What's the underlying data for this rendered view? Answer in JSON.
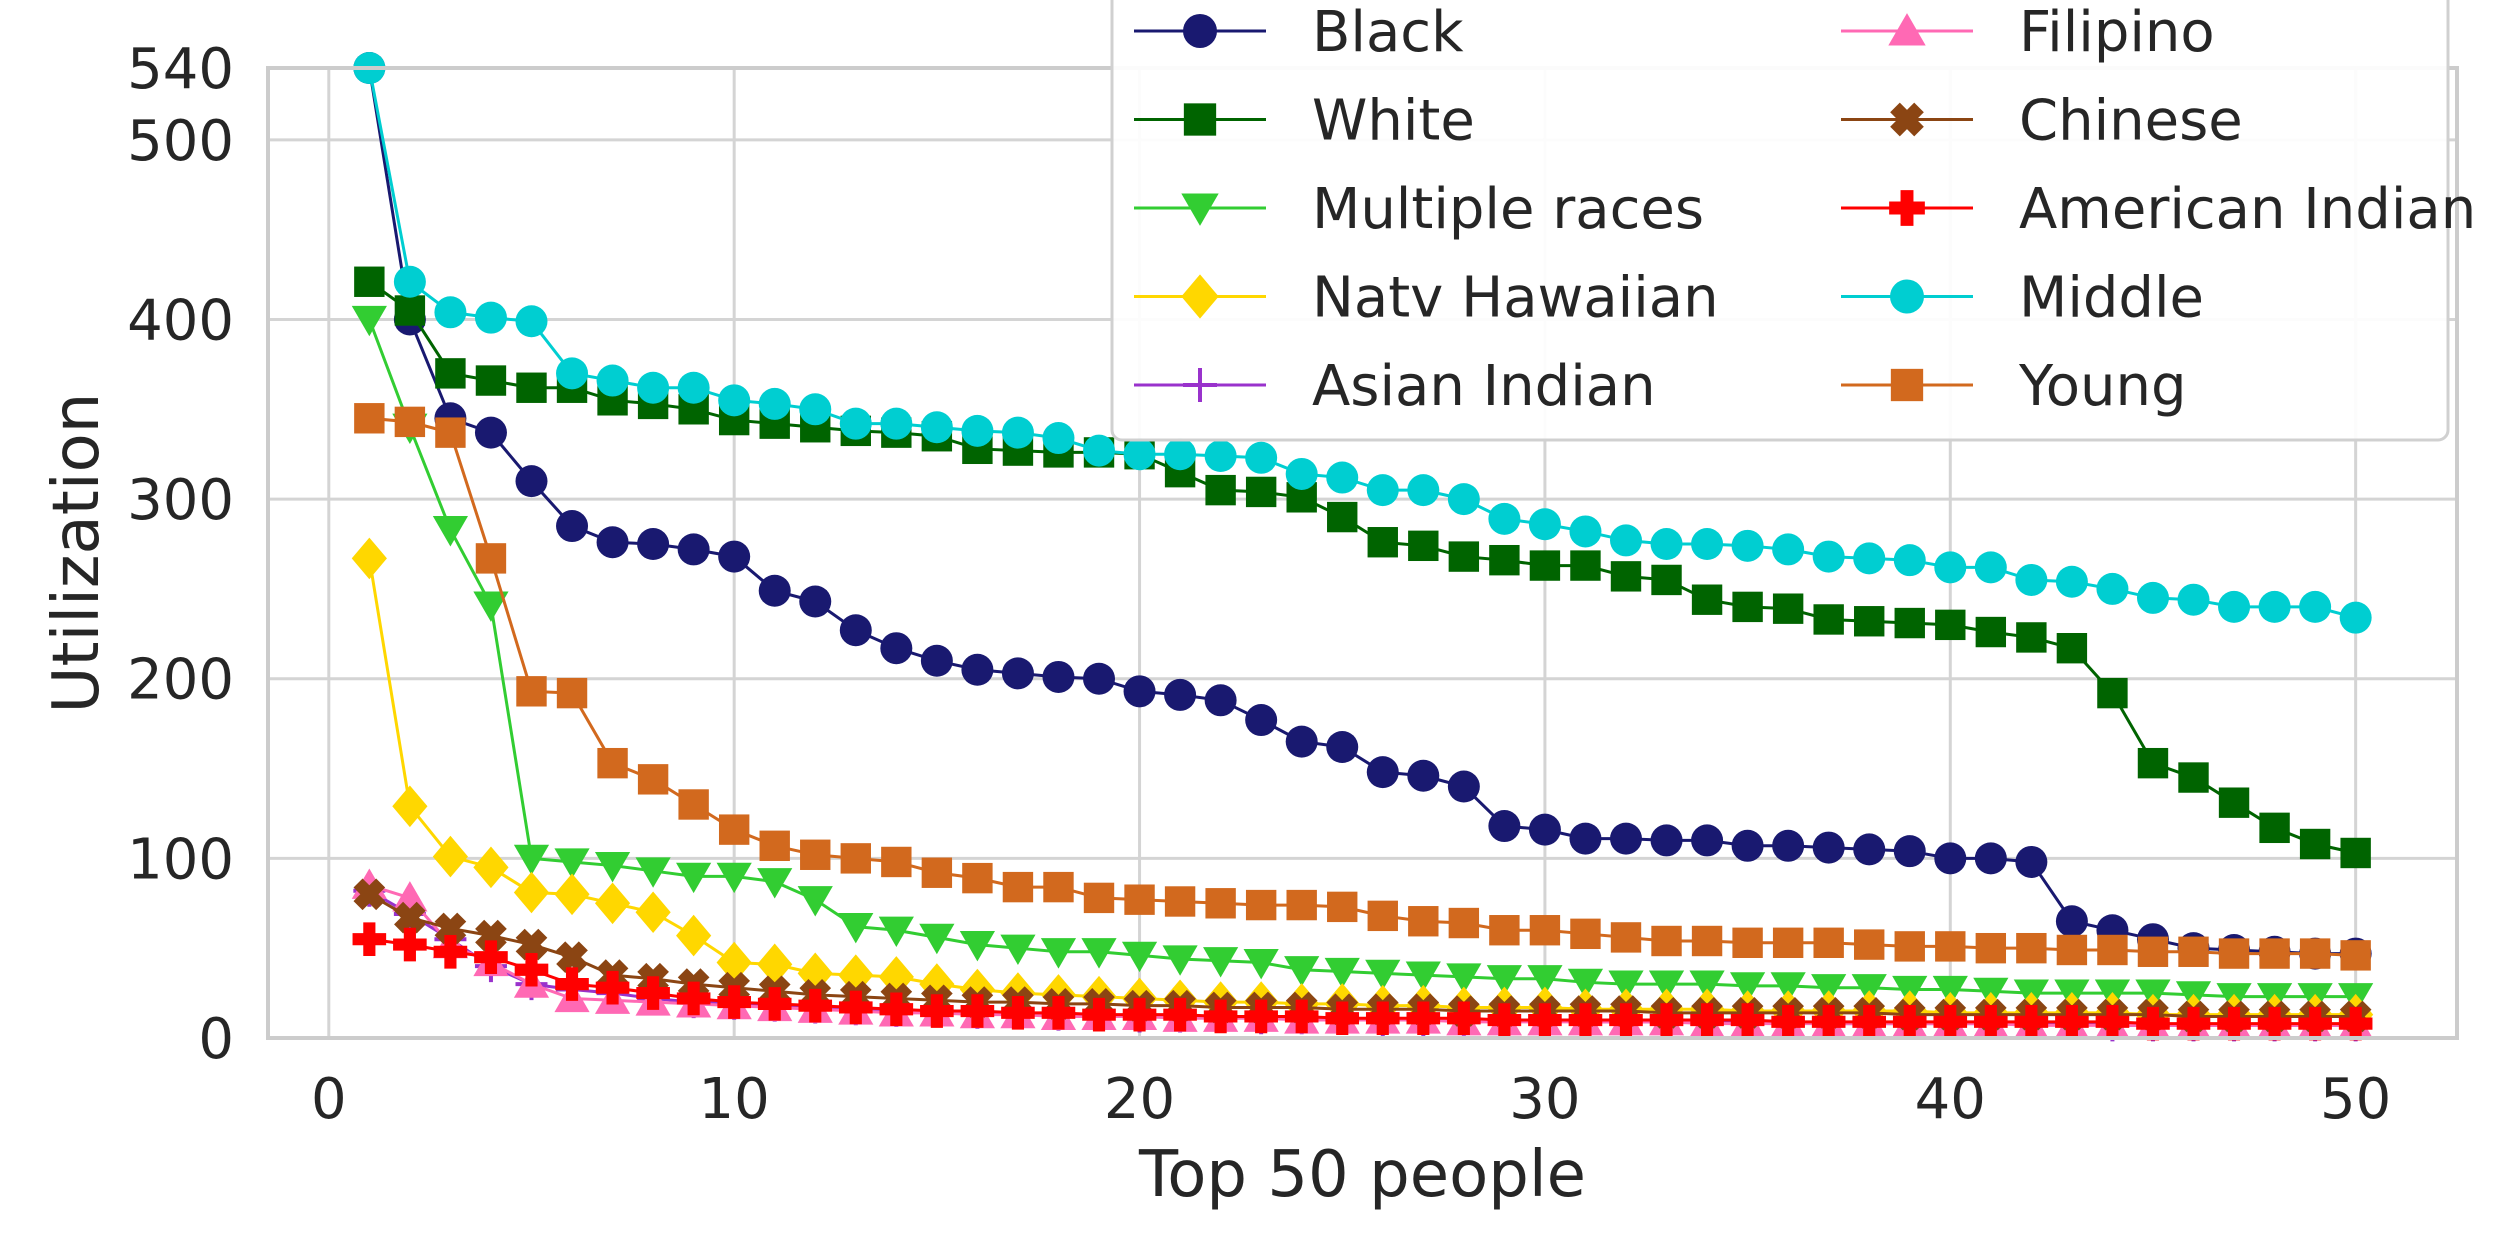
{
  "chart_data": {
    "type": "line",
    "xlabel": "Top 50 people",
    "ylabel": "Utilization",
    "xlim": [
      -1.5,
      52.5
    ],
    "ylim": [
      0,
      540
    ],
    "xticks": [
      0,
      10,
      20,
      30,
      40,
      50
    ],
    "yticks": [
      0,
      100,
      200,
      300,
      400,
      500,
      540
    ],
    "grid": true,
    "legend_position": "top-right",
    "x": [
      1,
      2,
      3,
      4,
      5,
      6,
      7,
      8,
      9,
      10,
      11,
      12,
      13,
      14,
      15,
      16,
      17,
      18,
      19,
      20,
      21,
      22,
      23,
      24,
      25,
      26,
      27,
      28,
      29,
      30,
      31,
      32,
      33,
      34,
      35,
      36,
      37,
      38,
      39,
      40,
      41,
      42,
      43,
      44,
      45,
      46,
      47,
      48,
      49,
      50
    ],
    "series": [
      {
        "name": "Black",
        "color": "#191970",
        "marker": "circle",
        "values": [
          540,
          400,
          345,
          337,
          310,
          285,
          276,
          275,
          272,
          268,
          249,
          243,
          227,
          217,
          210,
          205,
          203,
          201,
          200,
          193,
          191,
          188,
          177,
          165,
          162,
          148,
          146,
          140,
          118,
          116,
          111,
          111,
          110,
          110,
          107,
          107,
          106,
          105,
          104,
          100,
          100,
          98,
          65,
          60,
          55,
          50,
          49,
          48,
          47,
          47
        ]
      },
      {
        "name": "White",
        "color": "#006400",
        "marker": "square",
        "values": [
          421,
          405,
          370,
          366,
          362,
          362,
          355,
          353,
          350,
          344,
          342,
          340,
          338,
          337,
          335,
          328,
          327,
          326,
          326,
          325,
          315,
          305,
          304,
          301,
          290,
          276,
          274,
          268,
          266,
          263,
          263,
          257,
          255,
          244,
          240,
          239,
          233,
          232,
          231,
          230,
          226,
          223,
          217,
          192,
          153,
          145,
          131,
          117,
          108,
          103
        ]
      },
      {
        "name": "Multiple races",
        "color": "#32cd32",
        "marker": "triangle-down",
        "values": [
          400,
          340,
          283,
          241,
          100,
          98,
          96,
          93,
          90,
          90,
          87,
          77,
          62,
          60,
          56,
          52,
          50,
          48,
          48,
          46,
          44,
          43,
          42,
          38,
          37,
          36,
          35,
          34,
          33,
          33,
          31,
          30,
          30,
          30,
          29,
          29,
          28,
          28,
          27,
          27,
          26,
          25,
          25,
          25,
          25,
          24,
          23,
          23,
          23,
          23
        ]
      },
      {
        "name": "Natv Hawaiian",
        "color": "#ffd700",
        "marker": "diamond",
        "values": [
          267,
          129,
          101,
          95,
          81,
          80,
          75,
          70,
          57,
          42,
          41,
          36,
          35,
          34,
          30,
          27,
          25,
          24,
          23,
          22,
          21,
          20,
          20,
          19,
          19,
          18,
          18,
          17,
          17,
          17,
          16,
          16,
          16,
          16,
          15,
          15,
          15,
          15,
          15,
          14,
          14,
          14,
          14,
          14,
          13,
          13,
          13,
          13,
          13,
          13
        ]
      },
      {
        "name": "Asian Indian",
        "color": "#9932cc",
        "marker": "plus",
        "values": [
          82,
          69,
          55,
          40,
          30,
          27,
          25,
          22,
          20,
          19,
          18,
          17,
          16,
          15,
          15,
          14,
          14,
          13,
          13,
          12,
          12,
          12,
          11,
          11,
          11,
          10,
          10,
          10,
          10,
          10,
          9,
          9,
          9,
          9,
          9,
          9,
          8,
          8,
          8,
          8,
          8,
          8,
          8,
          7,
          7,
          7,
          7,
          7,
          7,
          7
        ]
      },
      {
        "name": "Filipino",
        "color": "#ff69b4",
        "marker": "triangle-up",
        "values": [
          85,
          78,
          52,
          42,
          30,
          22,
          21,
          20,
          19,
          18,
          17,
          16,
          15,
          14,
          14,
          13,
          13,
          12,
          12,
          12,
          11,
          11,
          11,
          10,
          10,
          10,
          10,
          9,
          9,
          9,
          9,
          9,
          9,
          8,
          8,
          8,
          8,
          8,
          8,
          8,
          8,
          7,
          7,
          7,
          7,
          7,
          7,
          7,
          7,
          7
        ]
      },
      {
        "name": "Chinese",
        "color": "#8b4513",
        "marker": "x",
        "values": [
          80,
          67,
          61,
          57,
          52,
          45,
          35,
          33,
          30,
          28,
          26,
          24,
          23,
          22,
          21,
          20,
          20,
          19,
          19,
          18,
          18,
          17,
          17,
          17,
          16,
          16,
          16,
          15,
          15,
          15,
          15,
          15,
          14,
          14,
          14,
          14,
          14,
          14,
          13,
          13,
          13,
          13,
          13,
          13,
          13,
          12,
          12,
          12,
          12,
          12
        ]
      },
      {
        "name": "American Indian",
        "color": "#ff0000",
        "marker": "plus-bold",
        "values": [
          55,
          52,
          48,
          45,
          38,
          30,
          28,
          25,
          22,
          20,
          19,
          18,
          17,
          16,
          15,
          15,
          14,
          14,
          13,
          13,
          13,
          12,
          12,
          12,
          11,
          11,
          11,
          11,
          10,
          10,
          10,
          10,
          10,
          10,
          10,
          9,
          9,
          9,
          9,
          9,
          9,
          9,
          9,
          9,
          8,
          8,
          8,
          8,
          8,
          8
        ]
      },
      {
        "name": "Middle",
        "color": "#00ced1",
        "marker": "circle",
        "values": [
          540,
          421,
          404,
          401,
          399,
          370,
          366,
          362,
          362,
          355,
          353,
          350,
          342,
          342,
          340,
          338,
          337,
          334,
          327,
          325,
          325,
          324,
          323,
          314,
          312,
          305,
          305,
          300,
          289,
          286,
          282,
          277,
          275,
          275,
          274,
          272,
          268,
          267,
          266,
          262,
          262,
          255,
          254,
          250,
          245,
          244,
          240,
          240,
          240,
          234
        ]
      },
      {
        "name": "Young",
        "color": "#d2691e",
        "marker": "square",
        "values": [
          345,
          343,
          337,
          267,
          193,
          192,
          153,
          144,
          130,
          116,
          107,
          102,
          100,
          98,
          92,
          89,
          84,
          84,
          78,
          77,
          76,
          75,
          74,
          74,
          73,
          68,
          65,
          64,
          60,
          60,
          58,
          56,
          54,
          54,
          53,
          53,
          53,
          52,
          51,
          51,
          50,
          50,
          49,
          49,
          48,
          48,
          47,
          47,
          47,
          46
        ]
      }
    ]
  }
}
